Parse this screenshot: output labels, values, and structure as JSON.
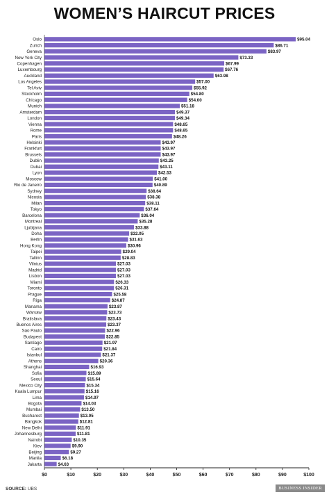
{
  "title": "WOMEN’S HAIRCUT PRICES",
  "source_label": "SOURCE:",
  "source_text": "UBS",
  "brand": "BUSINESS INSIDER",
  "colors": {
    "bar": "#7b64c4",
    "axis": "#222222",
    "text": "#111111"
  },
  "chart_data": {
    "type": "bar",
    "orientation": "horizontal",
    "xlim": [
      0,
      100
    ],
    "x_ticks": [
      0,
      10,
      20,
      30,
      40,
      50,
      60,
      70,
      80,
      90,
      100
    ],
    "x_tick_labels": [
      "$0",
      "$10",
      "$20",
      "$30",
      "$40",
      "$50",
      "$60",
      "$70",
      "$80",
      "$90",
      "$100"
    ],
    "grid": false,
    "categories": [
      "Oslo",
      "Zurich",
      "Geneva",
      "New York City",
      "Copenhagen",
      "Luxembourg",
      "Auckland",
      "Los Angeles",
      "Tel Aviv",
      "Stockholm",
      "Chicago",
      "Munich",
      "Amsterdam",
      "London",
      "Vienna",
      "Rome",
      "Paris",
      "Helsinki",
      "Frankfurt",
      "Brussels",
      "Dublin",
      "Dubai",
      "Lyon",
      "Moscow",
      "Rio de Janeiro",
      "Sydney",
      "Nicosia",
      "Milan",
      "Tokyo",
      "Barcelona",
      "Montreal",
      "Ljubljana",
      "Doha",
      "Berlin",
      "Hong Kong",
      "Taipei",
      "Tallinn",
      "Vilnius",
      "Madrid",
      "Lisbon",
      "Miami",
      "Toronto",
      "Prague",
      "Riga",
      "Manama",
      "Warsaw",
      "Bratislava",
      "Buenos Aires",
      "Sao Paulo",
      "Budapest",
      "Santiago",
      "Cairo",
      "Istanbul",
      "Athens",
      "Shanghai",
      "Sofia",
      "Seoul",
      "Mexico City",
      "Kuala Lumpur",
      "Lima",
      "Bogota",
      "Mumbai",
      "Bucharest",
      "Bangkok",
      "New Delhi",
      "Johannesburg",
      "Nairobi",
      "Kiev",
      "Beijing",
      "Manila",
      "Jakarta"
    ],
    "values": [
      95.04,
      86.71,
      83.97,
      73.33,
      67.99,
      67.76,
      63.98,
      57.0,
      55.92,
      54.8,
      54.0,
      51.18,
      49.37,
      49.34,
      48.65,
      48.65,
      48.26,
      43.97,
      43.97,
      43.97,
      43.25,
      43.11,
      42.53,
      41.0,
      40.89,
      38.64,
      38.38,
      38.11,
      37.64,
      36.04,
      35.28,
      33.88,
      32.05,
      31.63,
      30.96,
      29.04,
      28.83,
      27.03,
      27.03,
      27.03,
      26.33,
      26.31,
      25.58,
      24.87,
      23.87,
      23.73,
      23.43,
      23.37,
      22.96,
      22.85,
      21.97,
      21.84,
      21.37,
      20.36,
      16.93,
      15.89,
      15.64,
      15.34,
      15.16,
      14.97,
      14.03,
      13.5,
      13.05,
      12.81,
      11.91,
      11.81,
      10.35,
      9.9,
      9.27,
      6.18,
      4.63
    ],
    "value_labels": [
      "$95.04",
      "$86.71",
      "$83.97",
      "$73.33",
      "$67.99",
      "$67.76",
      "$63.98",
      "$57.00",
      "$55.92",
      "$54.80",
      "$54.00",
      "$51.18",
      "$49.37",
      "$49.34",
      "$48.65",
      "$48.65",
      "$48.26",
      "$43.97",
      "$43.97",
      "$43.97",
      "$43.25",
      "$43.11",
      "$42.53",
      "$41.00",
      "$40.89",
      "$38.64",
      "$38.38",
      "$38.11",
      "$37.64",
      "$36.04",
      "$35.28",
      "$33.88",
      "$32.05",
      "$31.63",
      "$30.96",
      "$29.04",
      "$28.83",
      "$27.03",
      "$27.03",
      "$27.03",
      "$26.33",
      "$26.31",
      "$25.58",
      "$24.87",
      "$23.87",
      "$23.73",
      "$23.43",
      "$23.37",
      "$22.96",
      "$22.85",
      "$21.97",
      "$21.84",
      "$21.37",
      "$20.36",
      "$16.93",
      "$15.89",
      "$15.64",
      "$15.34",
      "$15.16",
      "$14.97",
      "$14.03",
      "$13.50",
      "$13.05",
      "$12.81",
      "$11.91",
      "$11.81",
      "$10.35",
      "$9.90",
      "$9.27",
      "$6.18",
      "$4.63"
    ]
  }
}
